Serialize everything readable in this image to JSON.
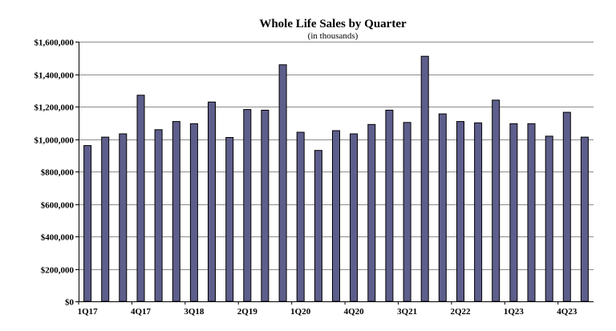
{
  "chart_data": {
    "type": "bar",
    "title": "Whole Life Sales by Quarter",
    "subtitle": "(in thousands)",
    "xlabel": "",
    "ylabel": "",
    "ylim": [
      0,
      1600000
    ],
    "yticks": [
      0,
      200000,
      400000,
      600000,
      800000,
      1000000,
      1200000,
      1400000,
      1600000
    ],
    "ytick_labels": [
      "$0",
      "$200,000",
      "$400,000",
      "$600,000",
      "$800,000",
      "$1,000,000",
      "$1,200,000",
      "$1,400,000",
      "$1,600,000"
    ],
    "grid": true,
    "bar_color": "#5e5e8c",
    "categories": [
      "1Q17",
      "2Q17",
      "3Q17",
      "4Q17",
      "1Q18",
      "2Q18",
      "3Q18",
      "4Q18",
      "1Q19",
      "2Q19",
      "3Q19",
      "4Q19",
      "1Q20",
      "2Q20",
      "3Q20",
      "4Q20",
      "1Q21",
      "2Q21",
      "3Q21",
      "4Q21",
      "1Q22",
      "2Q22",
      "3Q22",
      "4Q22",
      "1Q23",
      "2Q23",
      "3Q23",
      "4Q23",
      "1Q24"
    ],
    "xtick_labels": [
      "1Q17",
      "",
      "",
      "4Q17",
      "",
      "",
      "3Q18",
      "",
      "",
      "2Q19",
      "",
      "",
      "1Q20",
      "",
      "",
      "4Q20",
      "",
      "",
      "3Q21",
      "",
      "",
      "2Q22",
      "",
      "",
      "1Q23",
      "",
      "",
      "4Q23",
      ""
    ],
    "values": [
      960000,
      1012000,
      1032000,
      1270000,
      1058000,
      1108000,
      1095000,
      1228000,
      1010000,
      1182000,
      1178000,
      1458000,
      1042000,
      930000,
      1052000,
      1032000,
      1090000,
      1178000,
      1102000,
      1510000,
      1155000,
      1108000,
      1100000,
      1240000,
      1095000,
      1095000,
      1018000,
      1165000,
      1012000
    ]
  }
}
